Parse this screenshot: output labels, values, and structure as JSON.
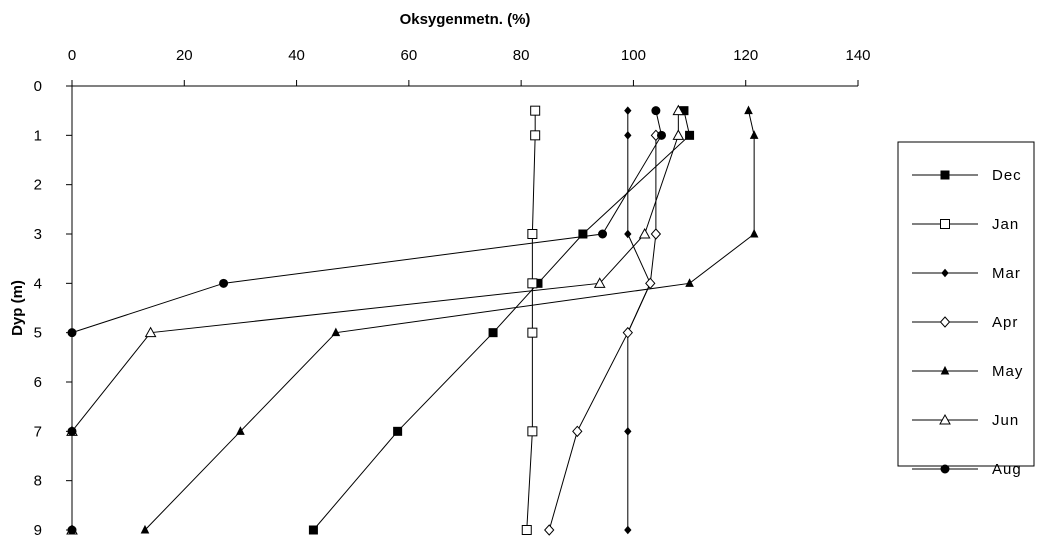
{
  "chart_data": {
    "type": "line",
    "title": "",
    "xlabel": "Oksygenmetn. (%)",
    "ylabel": "Dyp (m)",
    "xlim": [
      0,
      140
    ],
    "ylim": [
      9,
      0
    ],
    "x_axis_position": "top",
    "y_axis_inverted": true,
    "x_ticks": [
      "0",
      "20",
      "40",
      "60",
      "80",
      "100",
      "120",
      "140"
    ],
    "y_ticks": [
      "0",
      "1",
      "2",
      "3",
      "4",
      "5",
      "6",
      "7",
      "8",
      "9"
    ],
    "grid": false,
    "legend_position": "right",
    "series": [
      {
        "name": "Dec",
        "marker": "square-filled",
        "points": [
          [
            109,
            0.5
          ],
          [
            110,
            1
          ],
          [
            91,
            3
          ],
          [
            83,
            4
          ],
          [
            75,
            5
          ],
          [
            58,
            7
          ],
          [
            43,
            9
          ]
        ]
      },
      {
        "name": "Jan",
        "marker": "square-open",
        "points": [
          [
            82.5,
            0.5
          ],
          [
            82.5,
            1
          ],
          [
            82,
            3
          ],
          [
            82,
            4
          ],
          [
            82,
            5
          ],
          [
            82,
            7
          ],
          [
            81,
            9
          ]
        ]
      },
      {
        "name": "Mar",
        "marker": "diamond-small-filled",
        "points": [
          [
            99,
            0.5
          ],
          [
            99,
            1
          ],
          [
            99,
            3
          ],
          [
            103,
            4
          ],
          [
            99,
            5
          ],
          [
            99,
            7
          ],
          [
            99,
            9
          ]
        ]
      },
      {
        "name": "Apr",
        "marker": "diamond-open",
        "points": [
          [
            104,
            1
          ],
          [
            104,
            3
          ],
          [
            103,
            4
          ],
          [
            99,
            5
          ],
          [
            90,
            7
          ],
          [
            85,
            9
          ]
        ]
      },
      {
        "name": "May",
        "marker": "triangle-filled",
        "points": [
          [
            120.5,
            0.5
          ],
          [
            121.5,
            1
          ],
          [
            121.5,
            3
          ],
          [
            110,
            4
          ],
          [
            47,
            5
          ],
          [
            30,
            7
          ],
          [
            13,
            9
          ]
        ]
      },
      {
        "name": "Jun",
        "marker": "triangle-open",
        "points": [
          [
            108,
            0.5
          ],
          [
            108,
            1
          ],
          [
            102,
            3
          ],
          [
            94,
            4
          ],
          [
            14,
            5
          ],
          [
            0,
            7
          ],
          [
            0,
            9
          ]
        ]
      },
      {
        "name": "Aug",
        "marker": "circle-filled",
        "points": [
          [
            104,
            0.5
          ],
          [
            105,
            1
          ],
          [
            94.5,
            3
          ],
          [
            27,
            4
          ],
          [
            0,
            5
          ],
          [
            0,
            7
          ],
          [
            0,
            9
          ]
        ]
      }
    ]
  }
}
